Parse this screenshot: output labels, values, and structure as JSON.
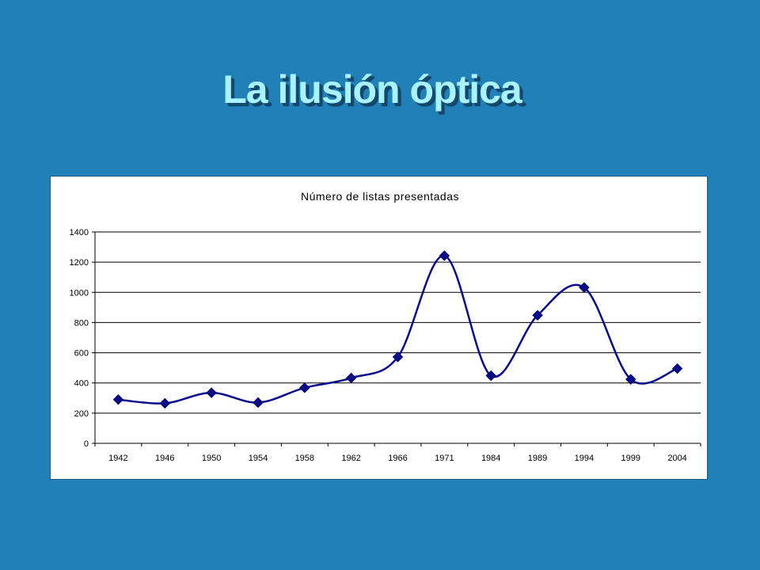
{
  "slide": {
    "title": "La ilusión óptica",
    "background_color": "#2180b8",
    "title_color": "#a9f3ff"
  },
  "chart_data": {
    "type": "line",
    "title": "Número de listas presentadas",
    "xlabel": "",
    "ylabel": "",
    "categories": [
      "1942",
      "1946",
      "1950",
      "1954",
      "1958",
      "1962",
      "1966",
      "1971",
      "1984",
      "1989",
      "1994",
      "1999",
      "2004"
    ],
    "series": [
      {
        "values": [
          290,
          265,
          335,
          270,
          368,
          433,
          572,
          1243,
          448,
          848,
          1032,
          424,
          495
        ],
        "color": "#0a0a8c",
        "marker": "diamond",
        "smooth": true
      }
    ],
    "ylim": [
      0,
      1400
    ],
    "yticks": [
      0,
      200,
      400,
      600,
      800,
      1000,
      1200,
      1400
    ],
    "grid": "horizontal",
    "legend": "none"
  }
}
